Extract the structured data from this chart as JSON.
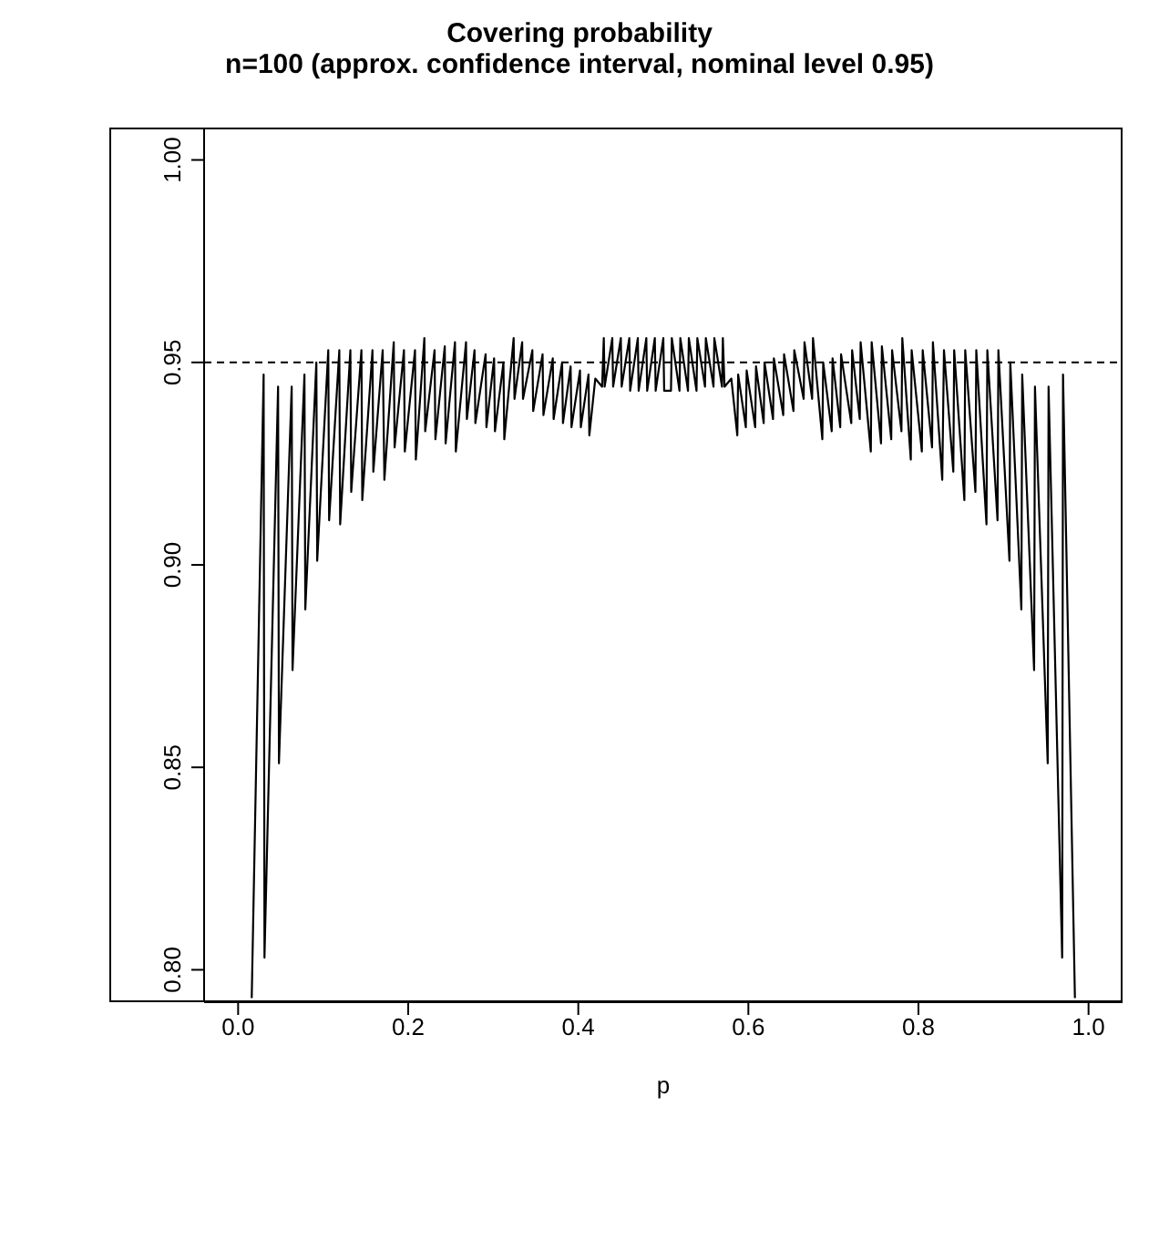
{
  "chart_data": {
    "type": "line",
    "title": "Covering probability",
    "subtitle": "n=100 (approx. confidence interval, nominal level 0.95)",
    "xlabel": "p",
    "xlim": [
      -0.04,
      1.04
    ],
    "xticks": [
      {
        "value": 0,
        "label": "0.0"
      },
      {
        "value": 0.2,
        "label": "0.2"
      },
      {
        "value": 0.4,
        "label": "0.4"
      },
      {
        "value": 0.6,
        "label": "0.6"
      },
      {
        "value": 0.8,
        "label": "0.8"
      },
      {
        "value": 1,
        "label": "1.0"
      }
    ],
    "ylim": [
      0.792,
      1.008
    ],
    "yticks": [
      {
        "value": 0.8,
        "label": "0.80"
      },
      {
        "value": 0.85,
        "label": "0.85"
      },
      {
        "value": 0.9,
        "label": "0.90"
      },
      {
        "value": 0.95,
        "label": "0.95"
      },
      {
        "value": 1,
        "label": "1.00"
      }
    ],
    "grid": false,
    "legend": false,
    "marker": "none",
    "line_style": "solid",
    "ref_lines": [
      {
        "axis": "y",
        "value": 0.95,
        "line_style": "dashed",
        "color": "#000000"
      }
    ],
    "series": [
      {
        "color": "#000000",
        "x": [
          0.016,
          0.03,
          0.031,
          0.047,
          0.048,
          0.063,
          0.064,
          0.078,
          0.079,
          0.092,
          0.093,
          0.106,
          0.107,
          0.119,
          0.12,
          0.132,
          0.133,
          0.145,
          0.146,
          0.158,
          0.159,
          0.17,
          0.172,
          0.183,
          0.184,
          0.195,
          0.196,
          0.208,
          0.209,
          0.219,
          0.22,
          0.231,
          0.232,
          0.243,
          0.244,
          0.255,
          0.256,
          0.268,
          0.269,
          0.278,
          0.279,
          0.291,
          0.292,
          0.301,
          0.302,
          0.312,
          0.313,
          0.324,
          0.325,
          0.334,
          0.335,
          0.346,
          0.347,
          0.358,
          0.359,
          0.37,
          0.371,
          0.381,
          0.382,
          0.391,
          0.392,
          0.402,
          0.403,
          0.412,
          0.413,
          0.42,
          0.428,
          0.43,
          0.431,
          0.44,
          0.441,
          0.45,
          0.451,
          0.46,
          0.461,
          0.47,
          0.471,
          0.48,
          0.481,
          0.49,
          0.491,
          0.5,
          0.501,
          0.509,
          0.51,
          0.519,
          0.52,
          0.529,
          0.53,
          0.539,
          0.54,
          0.549,
          0.55,
          0.559,
          0.56,
          0.569,
          0.57,
          0.572,
          0.58,
          0.587,
          0.588,
          0.597,
          0.598,
          0.608,
          0.609,
          0.618,
          0.619,
          0.629,
          0.63,
          0.641,
          0.642,
          0.653,
          0.654,
          0.665,
          0.666,
          0.675,
          0.676,
          0.687,
          0.688,
          0.698,
          0.699,
          0.708,
          0.709,
          0.721,
          0.722,
          0.731,
          0.732,
          0.744,
          0.745,
          0.756,
          0.757,
          0.768,
          0.769,
          0.78,
          0.781,
          0.791,
          0.792,
          0.804,
          0.805,
          0.816,
          0.817,
          0.828,
          0.83,
          0.841,
          0.842,
          0.854,
          0.855,
          0.867,
          0.868,
          0.88,
          0.881,
          0.893,
          0.894,
          0.907,
          0.908,
          0.921,
          0.922,
          0.936,
          0.937,
          0.952,
          0.953,
          0.969,
          0.97,
          0.984
        ],
        "values": [
          0.793,
          0.947,
          0.803,
          0.944,
          0.851,
          0.944,
          0.874,
          0.947,
          0.889,
          0.95,
          0.901,
          0.953,
          0.911,
          0.953,
          0.91,
          0.953,
          0.918,
          0.953,
          0.916,
          0.953,
          0.923,
          0.953,
          0.921,
          0.955,
          0.929,
          0.953,
          0.928,
          0.953,
          0.926,
          0.956,
          0.933,
          0.953,
          0.931,
          0.954,
          0.93,
          0.955,
          0.928,
          0.955,
          0.936,
          0.953,
          0.935,
          0.952,
          0.934,
          0.951,
          0.933,
          0.95,
          0.931,
          0.956,
          0.941,
          0.955,
          0.941,
          0.953,
          0.938,
          0.952,
          0.937,
          0.951,
          0.936,
          0.95,
          0.935,
          0.949,
          0.934,
          0.948,
          0.934,
          0.947,
          0.932,
          0.946,
          0.944,
          0.956,
          0.944,
          0.956,
          0.944,
          0.956,
          0.944,
          0.956,
          0.943,
          0.956,
          0.943,
          0.956,
          0.943,
          0.956,
          0.943,
          0.956,
          0.943,
          0.943,
          0.956,
          0.943,
          0.956,
          0.943,
          0.956,
          0.943,
          0.956,
          0.944,
          0.956,
          0.944,
          0.956,
          0.944,
          0.956,
          0.944,
          0.946,
          0.932,
          0.947,
          0.934,
          0.948,
          0.934,
          0.949,
          0.935,
          0.95,
          0.936,
          0.951,
          0.937,
          0.952,
          0.938,
          0.953,
          0.941,
          0.955,
          0.941,
          0.956,
          0.931,
          0.95,
          0.933,
          0.951,
          0.934,
          0.952,
          0.935,
          0.953,
          0.936,
          0.955,
          0.928,
          0.955,
          0.93,
          0.954,
          0.931,
          0.953,
          0.933,
          0.956,
          0.926,
          0.953,
          0.928,
          0.953,
          0.929,
          0.955,
          0.921,
          0.953,
          0.923,
          0.953,
          0.916,
          0.953,
          0.918,
          0.953,
          0.91,
          0.953,
          0.911,
          0.953,
          0.901,
          0.95,
          0.889,
          0.947,
          0.874,
          0.944,
          0.851,
          0.944,
          0.803,
          0.947,
          0.793
        ]
      }
    ]
  }
}
